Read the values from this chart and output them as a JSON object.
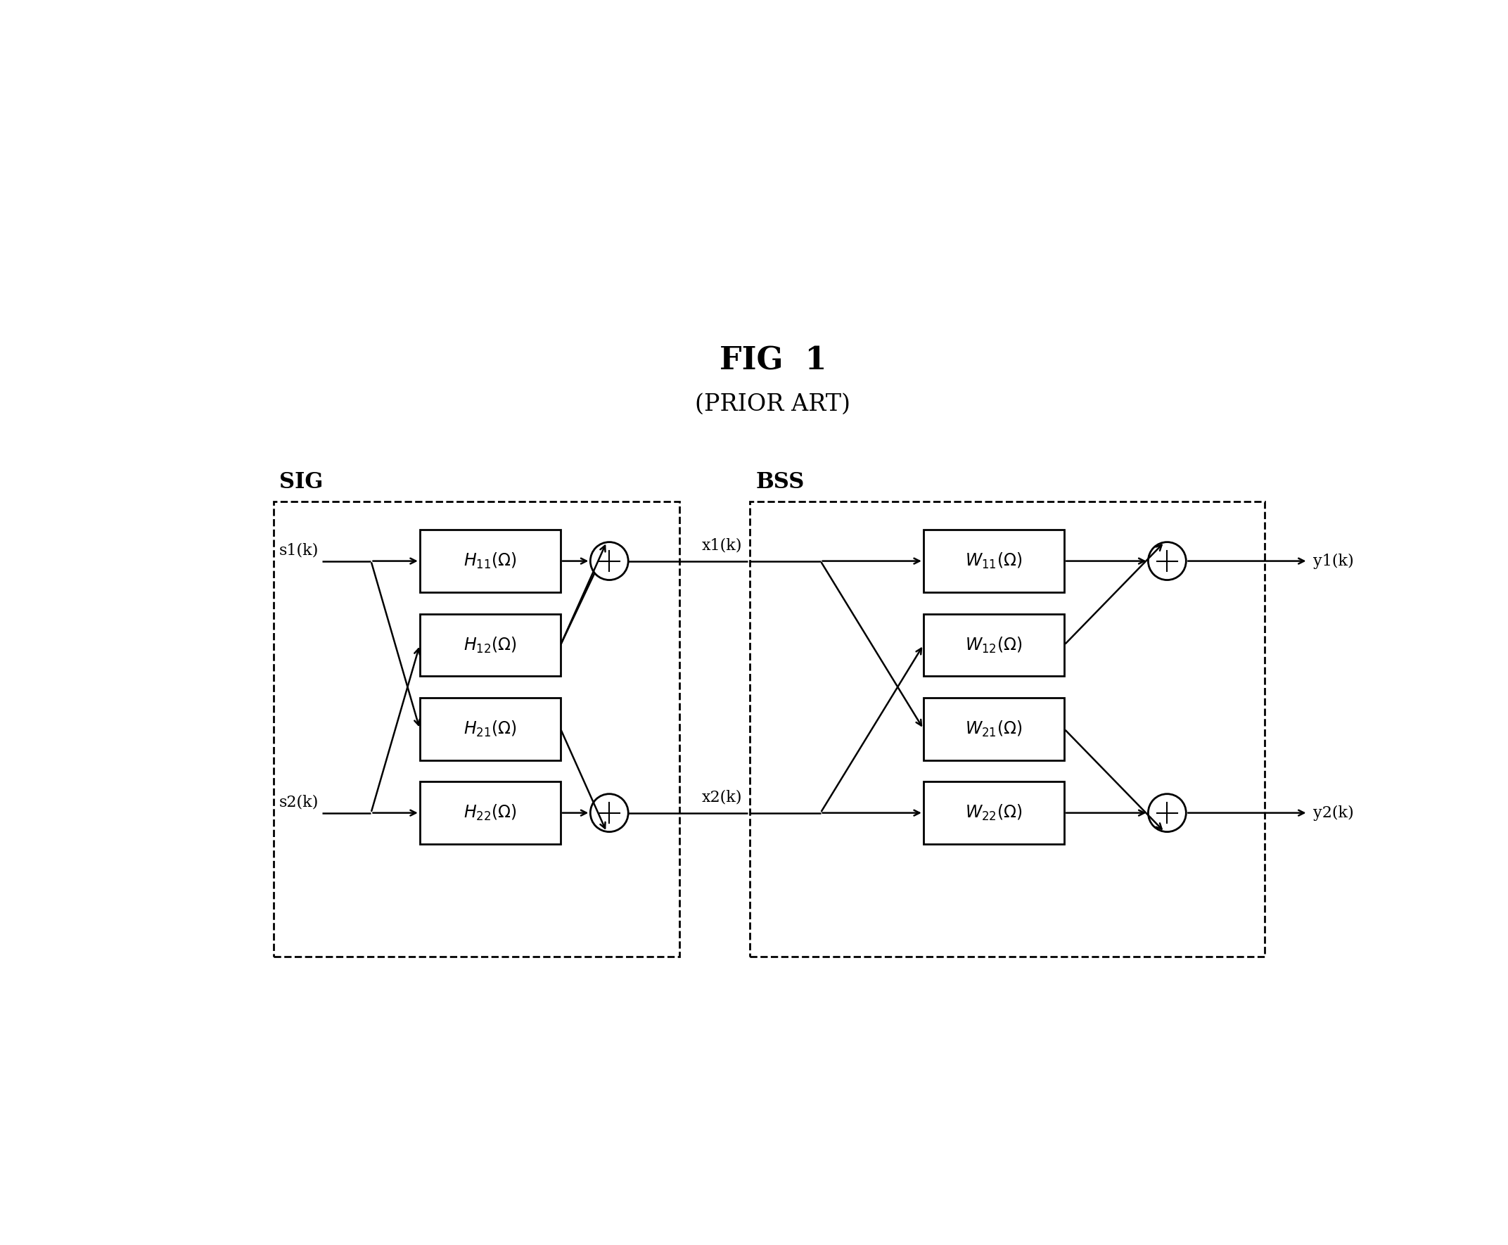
{
  "title": "FIG  1",
  "subtitle": "(PRIOR ART)",
  "title_fontsize": 32,
  "subtitle_fontsize": 24,
  "background_color": "#ffffff",
  "text_color": "#000000",
  "sig_label": "SIG",
  "bss_label": "BSS",
  "H_boxes": [
    "H_{11}(\\Omega)",
    "H_{12}(\\Omega)",
    "H_{21}(\\Omega)",
    "H_{22}(\\Omega)"
  ],
  "W_boxes": [
    "W_{11}(\\Omega)",
    "W_{12}(\\Omega)",
    "W_{21}(\\Omega)",
    "W_{22}(\\Omega)"
  ],
  "inputs": [
    "s1(k)",
    "s2(k)"
  ],
  "midpoints": [
    "x1(k)",
    "x2(k)"
  ],
  "outputs": [
    "y1(k)",
    "y2(k)"
  ]
}
